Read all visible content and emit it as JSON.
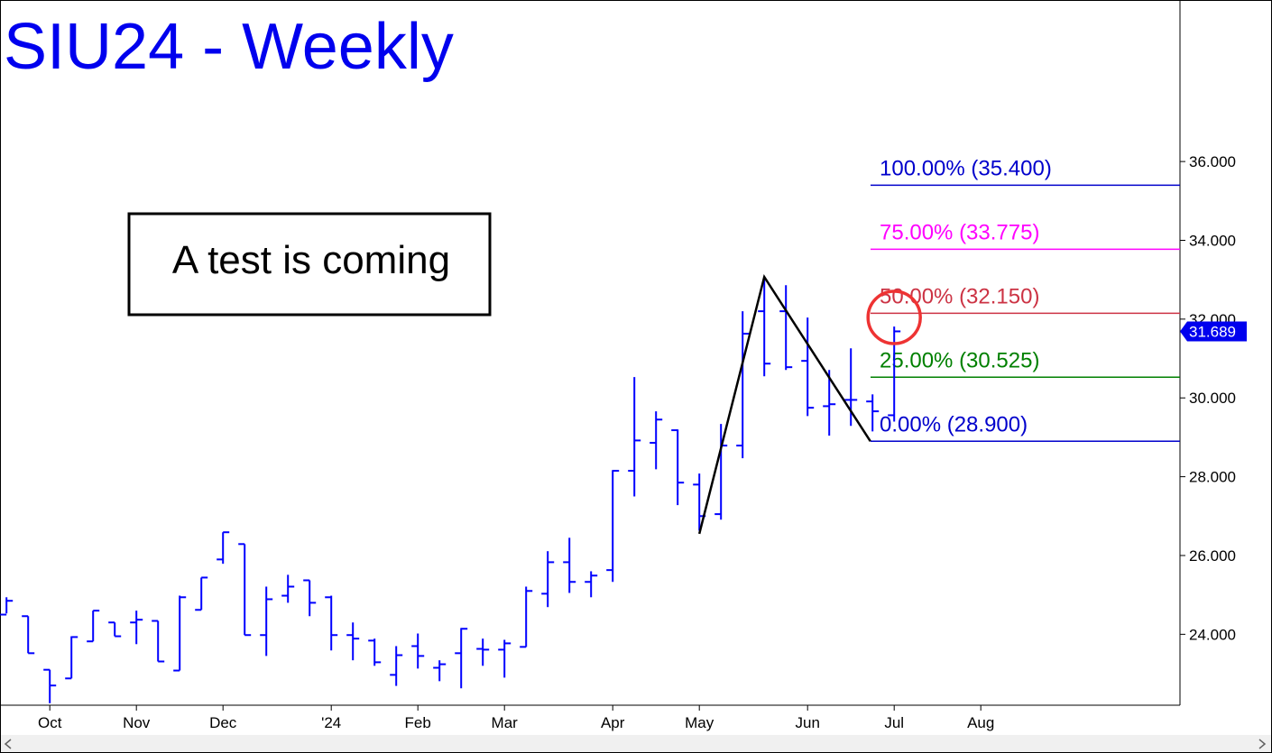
{
  "chart_data": {
    "type": "ohlc",
    "title": "SIU24 - Weekly",
    "annotation": "A test is coming",
    "color": "#0000ff",
    "x": [
      0,
      1,
      2,
      3,
      4,
      5,
      6,
      7,
      8,
      9,
      10,
      11,
      12,
      13,
      14,
      15,
      16,
      17,
      18,
      19,
      20,
      21,
      22,
      23,
      24,
      25,
      26,
      27,
      28,
      29,
      30,
      31,
      32,
      33,
      34,
      35,
      36,
      37,
      38,
      39,
      40,
      41
    ],
    "open": [
      24.5,
      24.46,
      23.1,
      22.88,
      23.82,
      24.3,
      24.3,
      24.34,
      23.08,
      24.62,
      25.9,
      26.29,
      23.98,
      24.98,
      25.37,
      24.94,
      23.98,
      23.84,
      22.97,
      23.7,
      23.15,
      23.52,
      23.63,
      23.61,
      23.68,
      25.03,
      25.83,
      25.33,
      25.63,
      28.15,
      28.86,
      29.18,
      27.8,
      27.05,
      28.79,
      32.2,
      32.2,
      30.94,
      29.79,
      29.95,
      29.91,
      29.56
    ],
    "high": [
      24.94,
      24.46,
      23.1,
      23.95,
      24.6,
      24.3,
      24.6,
      24.34,
      24.98,
      25.44,
      26.59,
      26.29,
      25.21,
      25.51,
      25.37,
      24.98,
      24.3,
      23.89,
      23.7,
      24.02,
      23.34,
      24.16,
      23.89,
      23.86,
      25.21,
      26.11,
      26.45,
      25.6,
      28.17,
      30.53,
      29.66,
      29.2,
      28.08,
      29.34,
      32.2,
      33.0,
      32.86,
      32.04,
      30.71,
      31.26,
      30.09,
      31.81
    ],
    "low": [
      24.53,
      23.52,
      22.25,
      22.88,
      23.82,
      23.95,
      23.75,
      23.31,
      23.08,
      24.62,
      25.79,
      23.98,
      23.45,
      24.8,
      24.46,
      23.59,
      23.34,
      23.2,
      22.69,
      23.13,
      22.81,
      22.63,
      23.2,
      22.9,
      23.68,
      24.69,
      25.05,
      24.94,
      25.33,
      27.5,
      28.19,
      27.28,
      26.63,
      26.91,
      28.47,
      30.55,
      30.71,
      29.54,
      29.04,
      29.29,
      29.15,
      29.4
    ],
    "close": [
      24.85,
      23.52,
      22.7,
      23.93,
      24.6,
      23.95,
      24.37,
      23.31,
      24.94,
      25.44,
      26.59,
      23.98,
      24.89,
      25.21,
      24.8,
      23.98,
      23.89,
      23.29,
      23.47,
      23.45,
      23.24,
      24.14,
      23.61,
      23.77,
      25.1,
      25.83,
      25.33,
      25.49,
      28.15,
      28.92,
      29.45,
      27.85,
      27.0,
      28.79,
      31.63,
      30.87,
      30.78,
      29.75,
      29.84,
      29.95,
      29.66,
      31.689
    ],
    "last_price": 31.689,
    "zigzag": {
      "x": [
        32,
        35,
        39.9
      ],
      "values": [
        26.55,
        33.07,
        28.9
      ]
    },
    "fib_levels": [
      {
        "label": "100.00% (35.400)",
        "value": 35.4,
        "color": "#0000cc"
      },
      {
        "label": "75.00% (33.775)",
        "value": 33.775,
        "color": "#ff00ff"
      },
      {
        "label": "50.00% (32.150)",
        "value": 32.15,
        "color": "#cc3344"
      },
      {
        "label": "25.00% (30.525)",
        "value": 30.525,
        "color": "#008000"
      },
      {
        "label": "0.00% (28.900)",
        "value": 28.9,
        "color": "#0000cc"
      }
    ],
    "xlim": [
      -0.3,
      54.2
    ],
    "ylim": [
      22.2,
      40.1
    ],
    "xticks": [
      {
        "value": 2,
        "label": "Oct"
      },
      {
        "value": 6,
        "label": "Nov"
      },
      {
        "value": 10,
        "label": "Dec"
      },
      {
        "value": 15,
        "label": "'24"
      },
      {
        "value": 19,
        "label": "Feb"
      },
      {
        "value": 23,
        "label": "Mar"
      },
      {
        "value": 28,
        "label": "Apr"
      },
      {
        "value": 32,
        "label": "May"
      },
      {
        "value": 37,
        "label": "Jun"
      },
      {
        "value": 41,
        "label": "Jul"
      },
      {
        "value": 45,
        "label": "Aug"
      }
    ],
    "yticks": [
      {
        "value": 24,
        "label": "24.000"
      },
      {
        "value": 26,
        "label": "26.000"
      },
      {
        "value": 28,
        "label": "28.000"
      },
      {
        "value": 30,
        "label": "30.000"
      },
      {
        "value": 32,
        "label": "32.000"
      },
      {
        "value": 34,
        "label": "34.000"
      },
      {
        "value": 36,
        "label": "36.000"
      }
    ]
  }
}
